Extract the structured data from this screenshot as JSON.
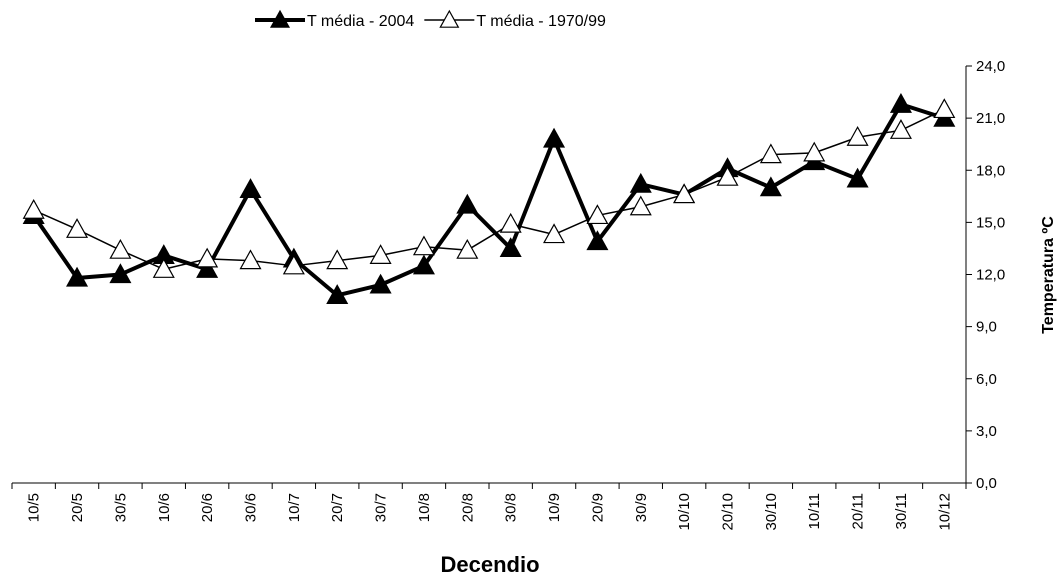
{
  "chart_data": {
    "type": "line",
    "x_label": "Decendio",
    "y_label": "Temperatura ºC",
    "categories": [
      "10/5",
      "20/5",
      "30/5",
      "10/6",
      "20/6",
      "30/6",
      "10/7",
      "20/7",
      "30/7",
      "10/8",
      "20/8",
      "30/8",
      "10/9",
      "20/9",
      "30/9",
      "10/10",
      "20/10",
      "30/10",
      "10/11",
      "20/11",
      "30/11",
      "10/12"
    ],
    "series": [
      {
        "name": "T média - 2004",
        "color": "#000000",
        "marker_fill": "#000000",
        "line_width": 4,
        "values": [
          15.4,
          11.8,
          12.0,
          13.1,
          12.3,
          16.9,
          12.9,
          10.8,
          11.4,
          12.5,
          16.0,
          13.5,
          19.8,
          13.9,
          17.2,
          16.6,
          18.1,
          17.0,
          18.5,
          17.5,
          21.8,
          21.0
        ]
      },
      {
        "name": "T média - 1970/99",
        "color": "#000000",
        "marker_fill": "#ffffff",
        "line_width": 1.5,
        "values": [
          15.7,
          14.6,
          13.4,
          12.3,
          12.9,
          12.8,
          12.5,
          12.8,
          13.1,
          13.6,
          13.4,
          14.9,
          14.3,
          15.4,
          15.9,
          16.6,
          17.6,
          18.9,
          19.0,
          19.9,
          20.3,
          21.5
        ]
      }
    ],
    "ylim": [
      0,
      24
    ],
    "yticks": [
      {
        "value": 0,
        "label": "0,0"
      },
      {
        "value": 3,
        "label": "3,0"
      },
      {
        "value": 6,
        "label": "6,0"
      },
      {
        "value": 9,
        "label": "9,0"
      },
      {
        "value": 12,
        "label": "12,0"
      },
      {
        "value": 15,
        "label": "15,0"
      },
      {
        "value": 18,
        "label": "18,0"
      },
      {
        "value": 21,
        "label": "21,0"
      },
      {
        "value": 24,
        "label": "24,0"
      }
    ],
    "legend": "top"
  }
}
